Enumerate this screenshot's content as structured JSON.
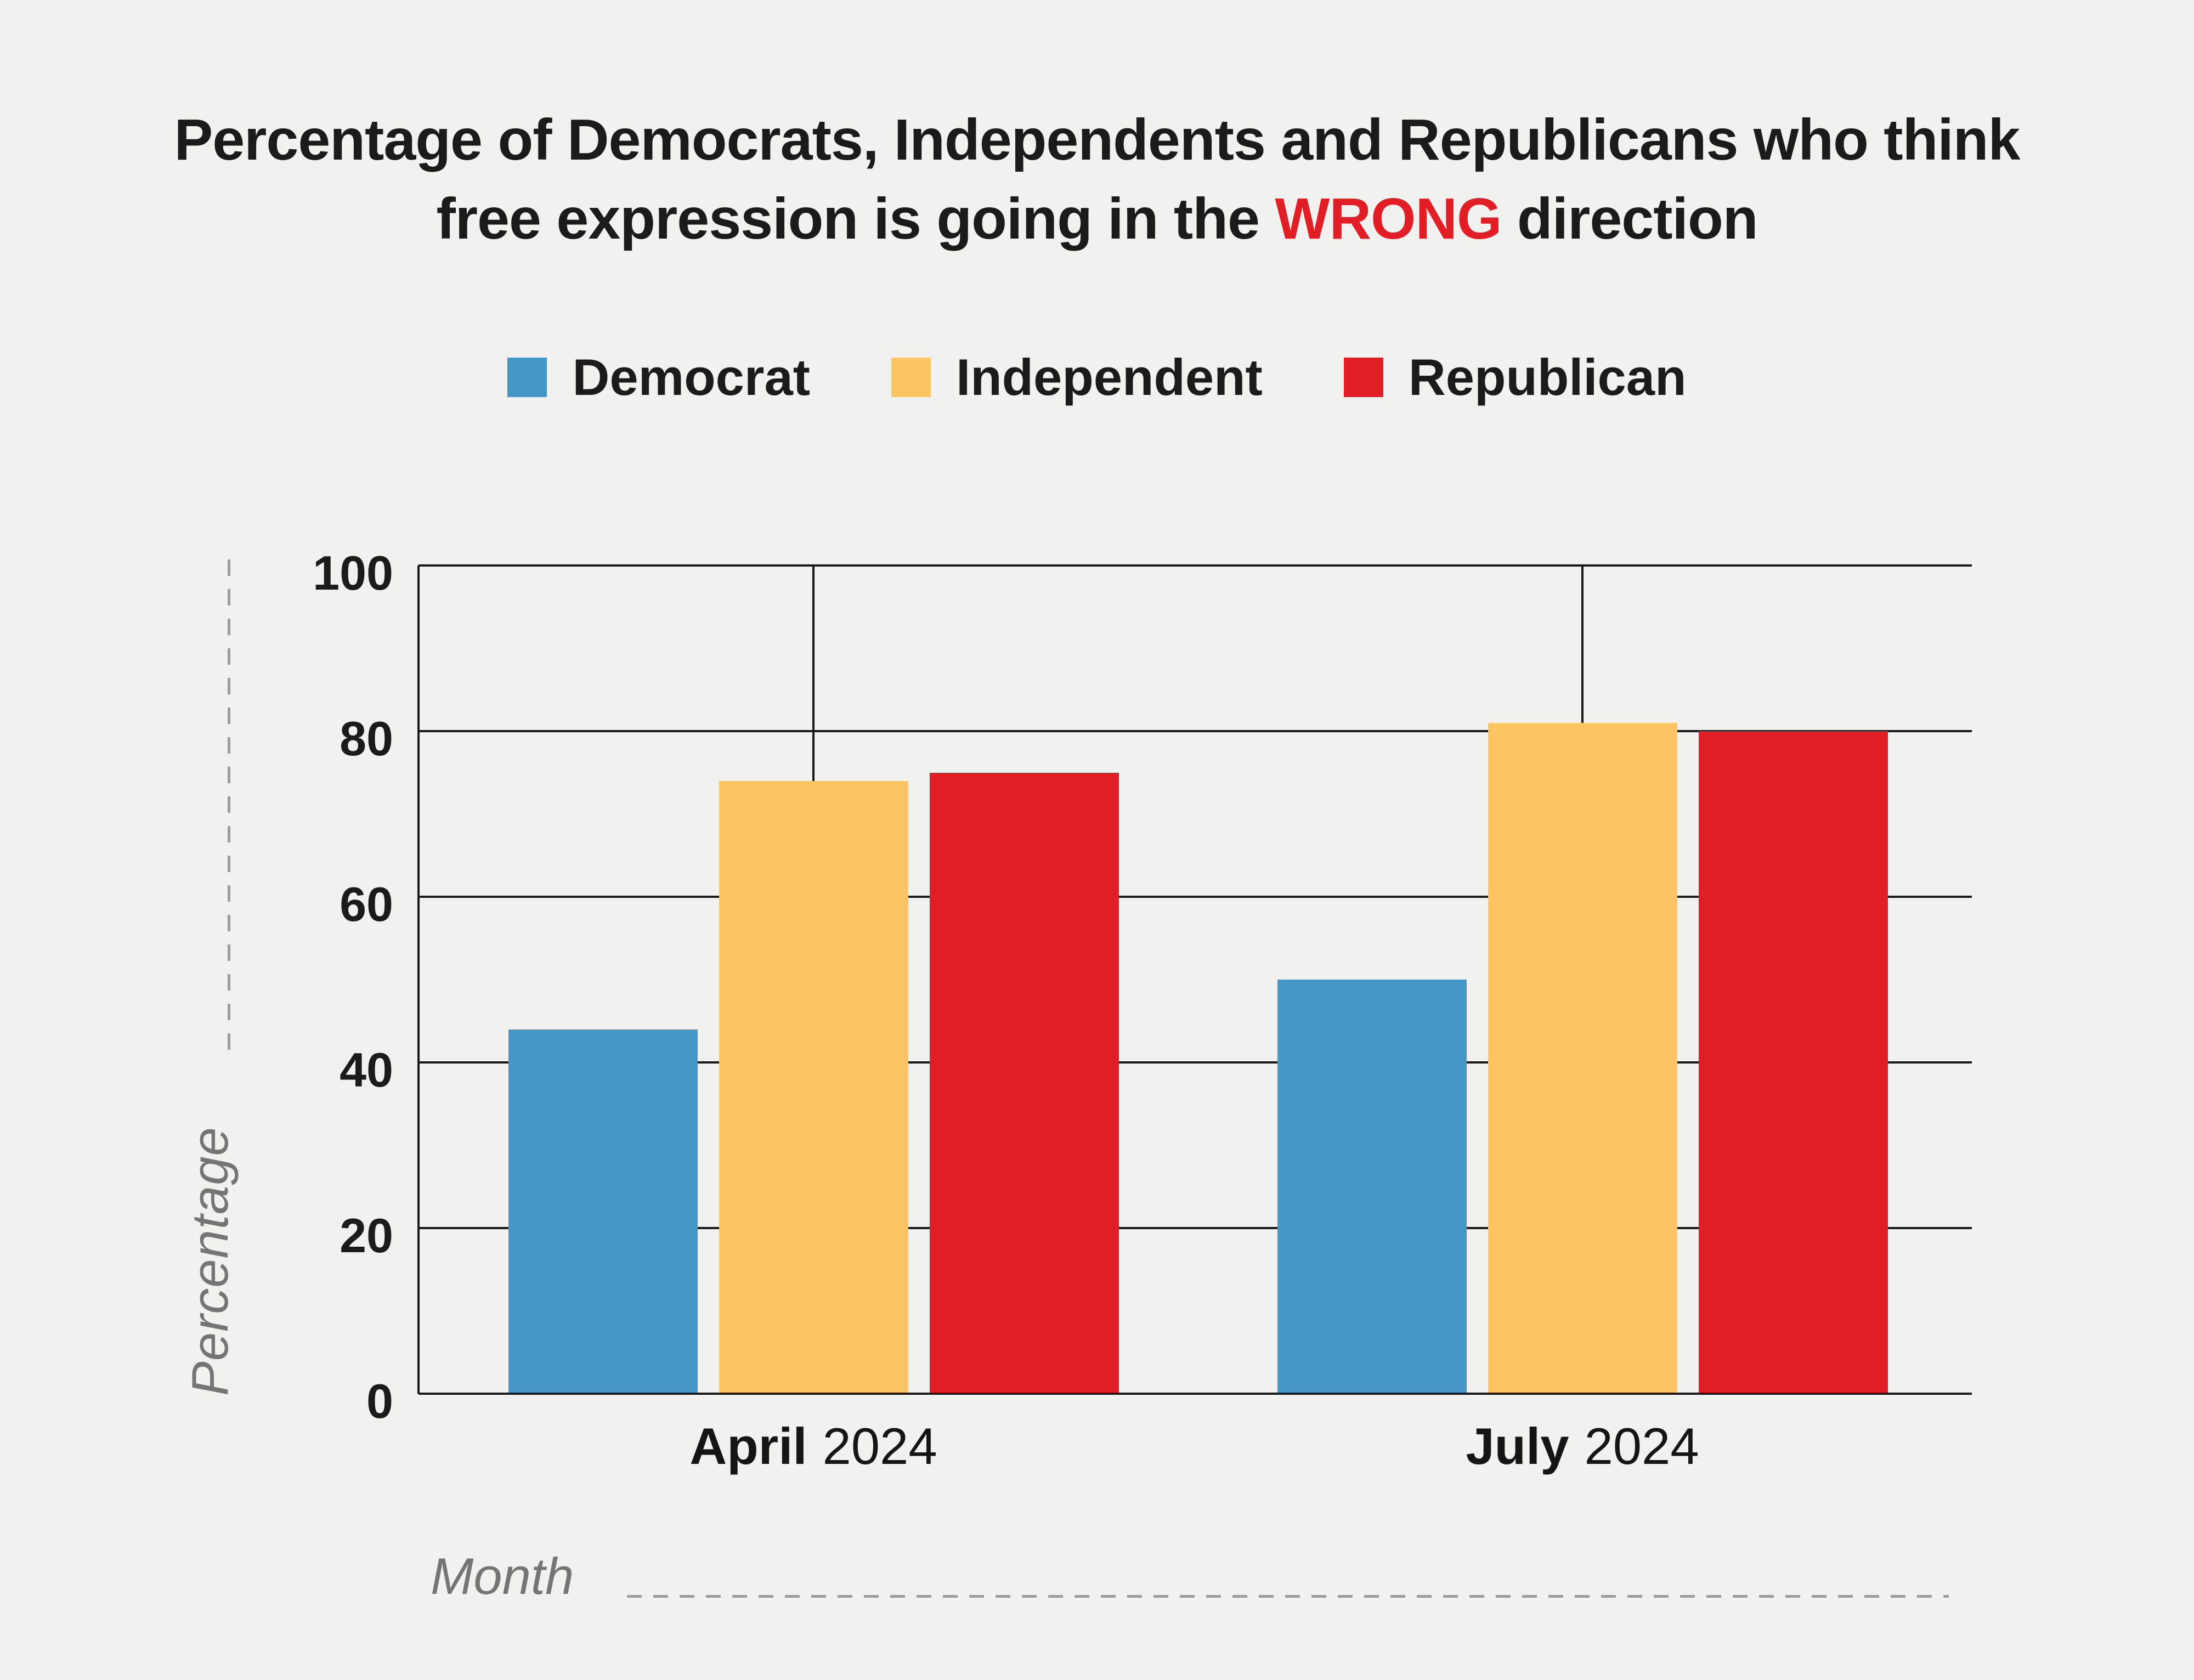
{
  "title": {
    "line1": "Percentage of Democrats, Independents and Republicans who think",
    "line2_pre": "free expression is going in the ",
    "line2_highlight": "WRONG",
    "line2_post": " direction"
  },
  "colors": {
    "democrat": "#4696C8",
    "independent": "#FDC463",
    "republican": "#E11D26",
    "highlight_red": "#E11D26",
    "background": "#F1F1EF",
    "text_dark": "#1B1B1B",
    "muted_gray": "#757575",
    "dash_gray": "#9C9C9C",
    "gridline": "#1A1A1A"
  },
  "legend": {
    "items": [
      {
        "label": "Democrat",
        "color": "#4696C8"
      },
      {
        "label": "Independent",
        "color": "#FDC463"
      },
      {
        "label": "Republican",
        "color": "#E11D26"
      }
    ]
  },
  "axes": {
    "y_label": "Percentage",
    "x_label": "Month",
    "y_ticks": [
      100,
      80,
      60,
      40,
      20,
      0
    ]
  },
  "chart_data": {
    "type": "bar",
    "title": "Percentage of Democrats, Independents and Republicans who think free expression is going in the WRONG direction",
    "categories": [
      "April 2024",
      "July 2024"
    ],
    "category_labels": [
      {
        "month": "April",
        "year": "2024"
      },
      {
        "month": "July",
        "year": "2024"
      }
    ],
    "series": [
      {
        "name": "Democrat",
        "color": "#4696C8",
        "values": [
          44,
          50
        ]
      },
      {
        "name": "Independent",
        "color": "#FDC463",
        "values": [
          74,
          81
        ]
      },
      {
        "name": "Republican",
        "color": "#E11D26",
        "values": [
          75,
          80
        ]
      }
    ],
    "xlabel": "Month",
    "ylabel": "Percentage",
    "ylim": [
      0,
      100
    ],
    "yticks": [
      0,
      20,
      40,
      60,
      80,
      100
    ],
    "grid": true,
    "legend_position": "top"
  }
}
